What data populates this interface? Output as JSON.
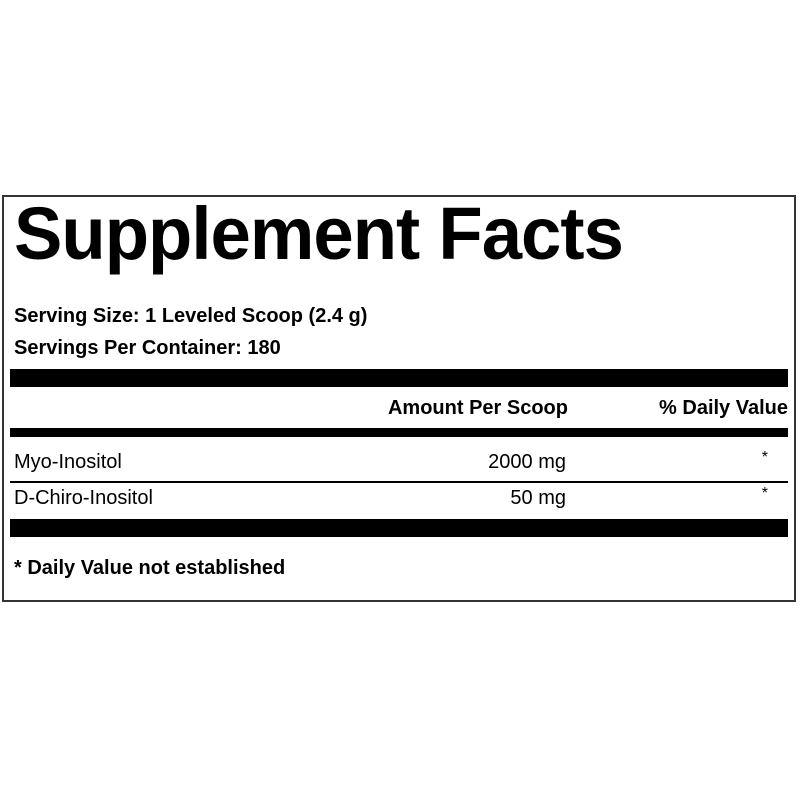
{
  "title": "Supplement Facts",
  "serving_size": "Serving Size: 1 Leveled Scoop (2.4 g)",
  "servings_per_container": "Servings Per Container: 180",
  "columns": {
    "amount": "Amount Per Scoop",
    "daily_value": "% Daily Value"
  },
  "rows": [
    {
      "name": "Myo-Inositol",
      "amount": "2000 mg",
      "dv": "*"
    },
    {
      "name": "D-Chiro-Inositol",
      "amount": "50 mg",
      "dv": "*"
    }
  ],
  "footnote": "* Daily Value not established"
}
